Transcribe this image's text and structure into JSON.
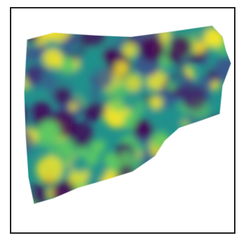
{
  "figure": {
    "colormap": "viridis",
    "colormap_stops": [
      "#440154",
      "#3b528b",
      "#21918c",
      "#5ec962",
      "#fde725"
    ],
    "background": "#ffffff",
    "frame_color": "#222222",
    "axes_visible": false
  }
}
